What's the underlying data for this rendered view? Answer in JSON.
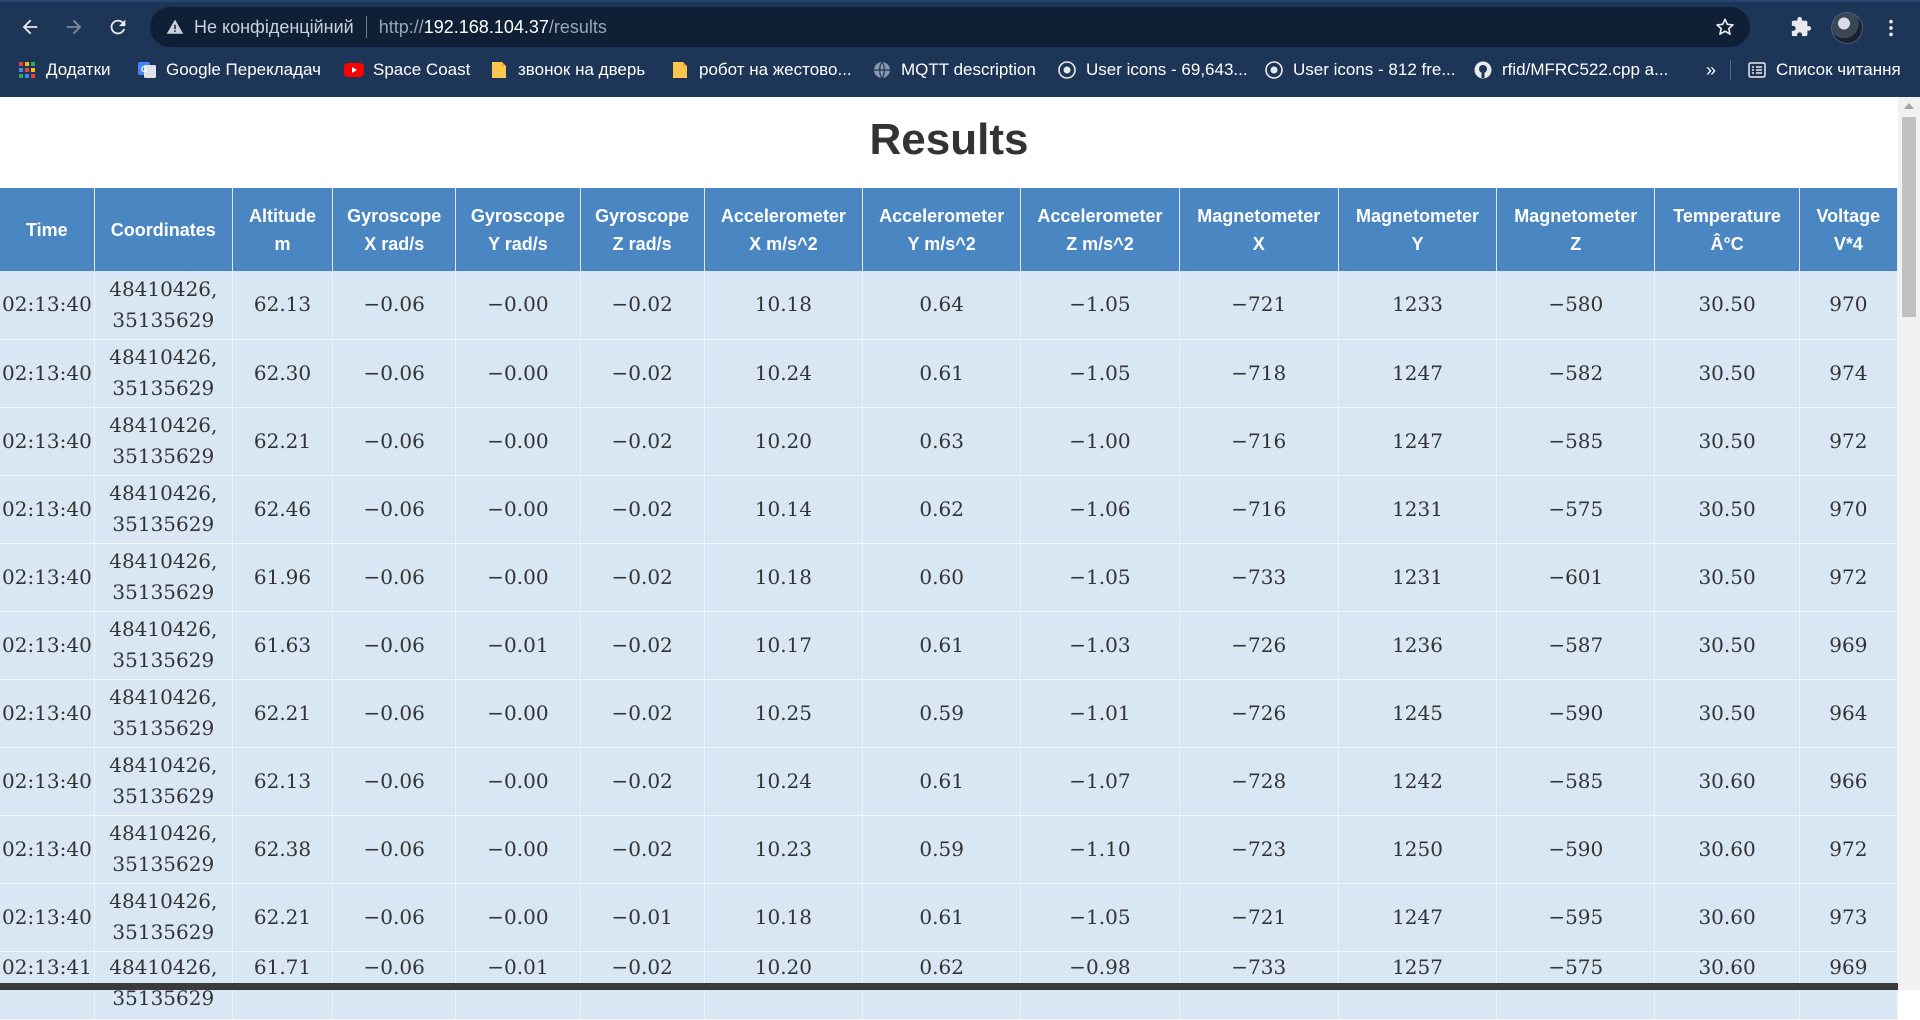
{
  "browser": {
    "security_label": "Не конфіденційний",
    "url_scheme": "http://",
    "url_host": "192.168.104.37",
    "url_path": "/results",
    "icons": {
      "back": "back-arrow-icon",
      "forward": "forward-arrow-icon",
      "reload": "reload-icon",
      "warning": "warning-icon",
      "bookmark_star": "star-icon",
      "extensions": "puzzle-icon",
      "menu": "kebab-menu-icon"
    },
    "bookmarks": [
      {
        "label": "Додатки",
        "icon": "apps-grid-icon"
      },
      {
        "label": "Google Перекладач",
        "icon": "google-translate-icon"
      },
      {
        "label": "Space Coast",
        "icon": "youtube-icon"
      },
      {
        "label": "звонок на дверь",
        "icon": "note-icon"
      },
      {
        "label": "робот на жестово...",
        "icon": "note-icon"
      },
      {
        "label": "MQTT description",
        "icon": "globe-icon"
      },
      {
        "label": "User icons - 69,643...",
        "icon": "flaticon-icon"
      },
      {
        "label": "User icons - 812 fre...",
        "icon": "flaticon-icon"
      },
      {
        "label": "rfid/MFRC522.cpp a...",
        "icon": "github-icon"
      }
    ],
    "bookmarks_more": "»",
    "reading_list_label": "Список читання"
  },
  "page": {
    "title": "Results",
    "columns": [
      "Time",
      "Coordinates",
      "Altitude\nm",
      "Gyroscope\nX rad/s",
      "Gyroscope\nY rad/s",
      "Gyroscope\nZ rad/s",
      "Accelerometer\nX m/s^2",
      "Accelerometer\nY m/s^2",
      "Accelerometer\nZ m/s^2",
      "Magnetometer\nX",
      "Magnetometer\nY",
      "Magnetometer\nZ",
      "Temperature\nÂ°C",
      "Voltage\nV*4"
    ],
    "rows": [
      [
        "02:13:40",
        "48410426,\n35135629",
        "62.13",
        "−0.06",
        "−0.00",
        "−0.02",
        "10.18",
        "0.64",
        "−1.05",
        "−721",
        "1233",
        "−580",
        "30.50",
        "970"
      ],
      [
        "02:13:40",
        "48410426,\n35135629",
        "62.30",
        "−0.06",
        "−0.00",
        "−0.02",
        "10.24",
        "0.61",
        "−1.05",
        "−718",
        "1247",
        "−582",
        "30.50",
        "974"
      ],
      [
        "02:13:40",
        "48410426,\n35135629",
        "62.21",
        "−0.06",
        "−0.00",
        "−0.02",
        "10.20",
        "0.63",
        "−1.00",
        "−716",
        "1247",
        "−585",
        "30.50",
        "972"
      ],
      [
        "02:13:40",
        "48410426,\n35135629",
        "62.46",
        "−0.06",
        "−0.00",
        "−0.02",
        "10.14",
        "0.62",
        "−1.06",
        "−716",
        "1231",
        "−575",
        "30.50",
        "970"
      ],
      [
        "02:13:40",
        "48410426,\n35135629",
        "61.96",
        "−0.06",
        "−0.00",
        "−0.02",
        "10.18",
        "0.60",
        "−1.05",
        "−733",
        "1231",
        "−601",
        "30.50",
        "972"
      ],
      [
        "02:13:40",
        "48410426,\n35135629",
        "61.63",
        "−0.06",
        "−0.01",
        "−0.02",
        "10.17",
        "0.61",
        "−1.03",
        "−726",
        "1236",
        "−587",
        "30.50",
        "969"
      ],
      [
        "02:13:40",
        "48410426,\n35135629",
        "62.21",
        "−0.06",
        "−0.00",
        "−0.02",
        "10.25",
        "0.59",
        "−1.01",
        "−726",
        "1245",
        "−590",
        "30.50",
        "964"
      ],
      [
        "02:13:40",
        "48410426,\n35135629",
        "62.13",
        "−0.06",
        "−0.00",
        "−0.02",
        "10.24",
        "0.61",
        "−1.07",
        "−728",
        "1242",
        "−585",
        "30.60",
        "966"
      ],
      [
        "02:13:40",
        "48410426,\n35135629",
        "62.38",
        "−0.06",
        "−0.00",
        "−0.02",
        "10.23",
        "0.59",
        "−1.10",
        "−723",
        "1250",
        "−590",
        "30.60",
        "972"
      ],
      [
        "02:13:40",
        "48410426,\n35135629",
        "62.21",
        "−0.06",
        "−0.00",
        "−0.01",
        "10.18",
        "0.61",
        "−1.05",
        "−721",
        "1247",
        "−595",
        "30.60",
        "973"
      ],
      [
        "02:13:41",
        "48410426,\n35135629",
        "61.71",
        "−0.06",
        "−0.01",
        "−0.02",
        "10.20",
        "0.62",
        "−0.98",
        "−733",
        "1257",
        "−575",
        "30.60",
        "969"
      ]
    ]
  }
}
